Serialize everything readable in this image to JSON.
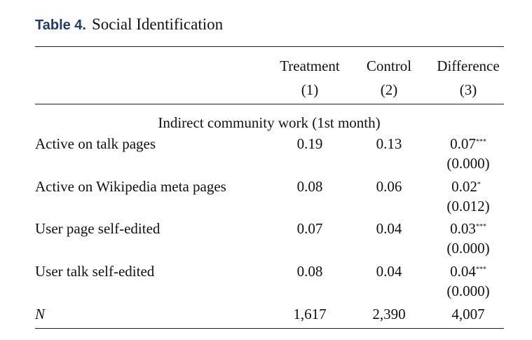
{
  "caption": {
    "label": "Table 4.",
    "title": "Social Identification"
  },
  "columns": [
    {
      "name": "Treatment",
      "number": "(1)"
    },
    {
      "name": "Control",
      "number": "(2)"
    },
    {
      "name": "Difference",
      "number": "(3)"
    }
  ],
  "section_heading": "Indirect community work (1st month)",
  "rows": [
    {
      "label": "Active on talk pages",
      "treatment": "0.19",
      "control": "0.13",
      "difference": "0.07",
      "stars": "***",
      "se": "(0.000)"
    },
    {
      "label": "Active on Wikipedia meta pages",
      "treatment": "0.08",
      "control": "0.06",
      "difference": "0.02",
      "stars": "*",
      "se": "(0.012)"
    },
    {
      "label": "User page self-edited",
      "treatment": "0.07",
      "control": "0.04",
      "difference": "0.03",
      "stars": "***",
      "se": "(0.000)"
    },
    {
      "label": "User talk self-edited",
      "treatment": "0.08",
      "control": "0.04",
      "difference": "0.04",
      "stars": "***",
      "se": "(0.000)"
    }
  ],
  "n_row": {
    "label": "N",
    "treatment": "1,617",
    "control": "2,390",
    "difference": "4,007"
  }
}
